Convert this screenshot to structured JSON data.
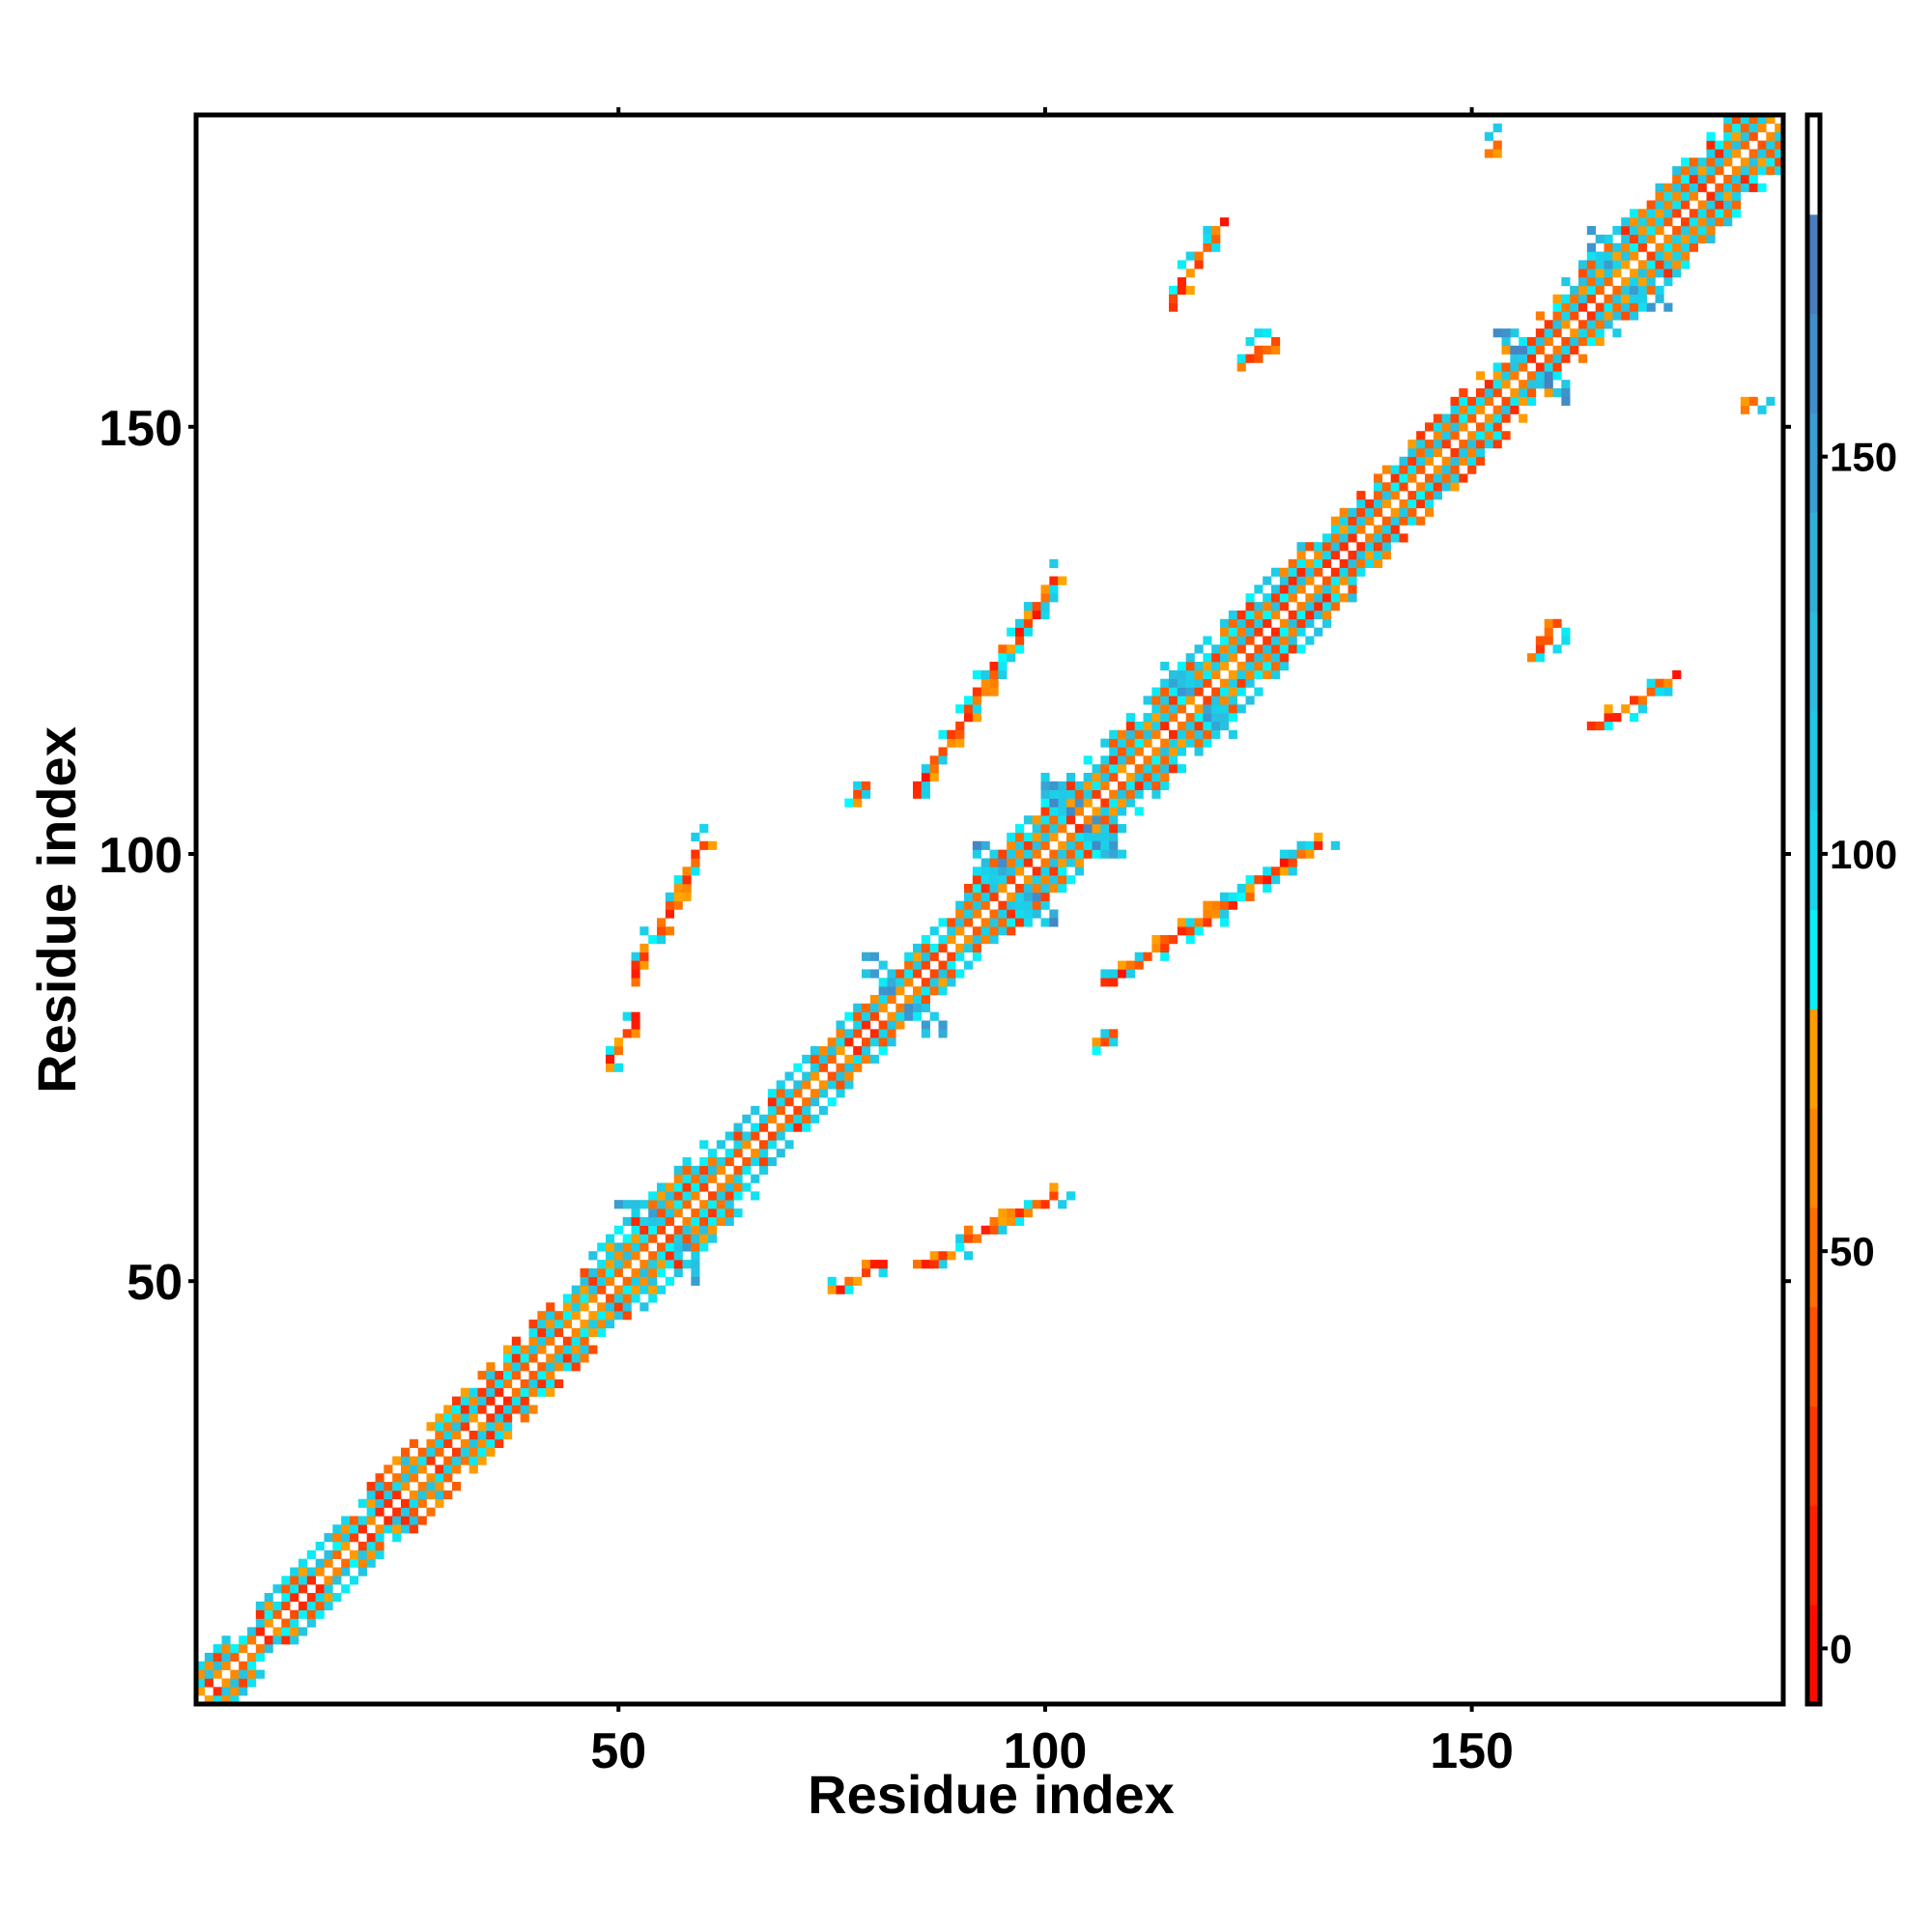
{
  "chart_data": {
    "type": "heatmap",
    "title": "",
    "xlabel": "Residue index",
    "ylabel": "Residue index",
    "n_residues": 186,
    "xlim": [
      0.5,
      186.5
    ],
    "ylim": [
      0.5,
      186.5
    ],
    "xticks": [
      50,
      100,
      150
    ],
    "yticks": [
      50,
      100,
      150
    ],
    "xtick_labels": [
      "50",
      "100",
      "150"
    ],
    "ytick_labels": [
      "50",
      "100",
      "150"
    ],
    "symmetric": true,
    "colorbar": {
      "range": [
        -7,
        193
      ],
      "ticks": [
        0,
        50,
        100,
        150
      ],
      "tick_labels": [
        "0",
        "50",
        "100",
        "150"
      ],
      "stops": [
        {
          "value": -7,
          "color": "#ff0000"
        },
        {
          "value": 30,
          "color": "#ff4000"
        },
        {
          "value": 55,
          "color": "#ff7a00"
        },
        {
          "value": 79,
          "color": "#ffa500"
        },
        {
          "value": 80,
          "color": "#00ffff"
        },
        {
          "value": 100,
          "color": "#19d3ea"
        },
        {
          "value": 130,
          "color": "#2eb8dc"
        },
        {
          "value": 160,
          "color": "#3f90cc"
        },
        {
          "value": 180,
          "color": "#4f76b8"
        },
        {
          "value": 181,
          "color": "#ffffff"
        }
      ]
    },
    "diagonal_band_halfwidth": [
      {
        "from": 1,
        "to": 20,
        "width": 4
      },
      {
        "from": 21,
        "to": 45,
        "width": 5
      },
      {
        "from": 46,
        "to": 60,
        "width": 6
      },
      {
        "from": 61,
        "to": 90,
        "width": 4
      },
      {
        "from": 91,
        "to": 130,
        "width": 6
      },
      {
        "from": 131,
        "to": 160,
        "width": 5
      },
      {
        "from": 161,
        "to": 186,
        "width": 6
      }
    ],
    "near_diagonal_clusters": [
      55,
      83,
      96,
      104,
      118,
      157,
      168
    ],
    "contact_segments": [
      {
        "from": [
          51.5,
          85.4
        ],
        "to": [
          60.2,
          101.4
        ]
      },
      {
        "from": [
          84.8,
          107.0
        ],
        "to": [
          100.8,
          131.8
        ]
      },
      {
        "from": [
          114.6,
          164.4
        ],
        "to": [
          121.0,
          173.8
        ]
      },
      {
        "from": [
          48.6,
          75.3
        ],
        "to": [
          52.2,
          81.0
        ]
      },
      {
        "from": [
          77.0,
          105.5
        ],
        "to": [
          78.5,
          108.0
        ]
      },
      {
        "from": [
          152.0,
          182.0
        ],
        "to": [
          153.0,
          183.0
        ]
      },
      {
        "from": [
          123.0,
          157.0
        ],
        "to": [
          127.0,
          160.0
        ]
      }
    ]
  }
}
